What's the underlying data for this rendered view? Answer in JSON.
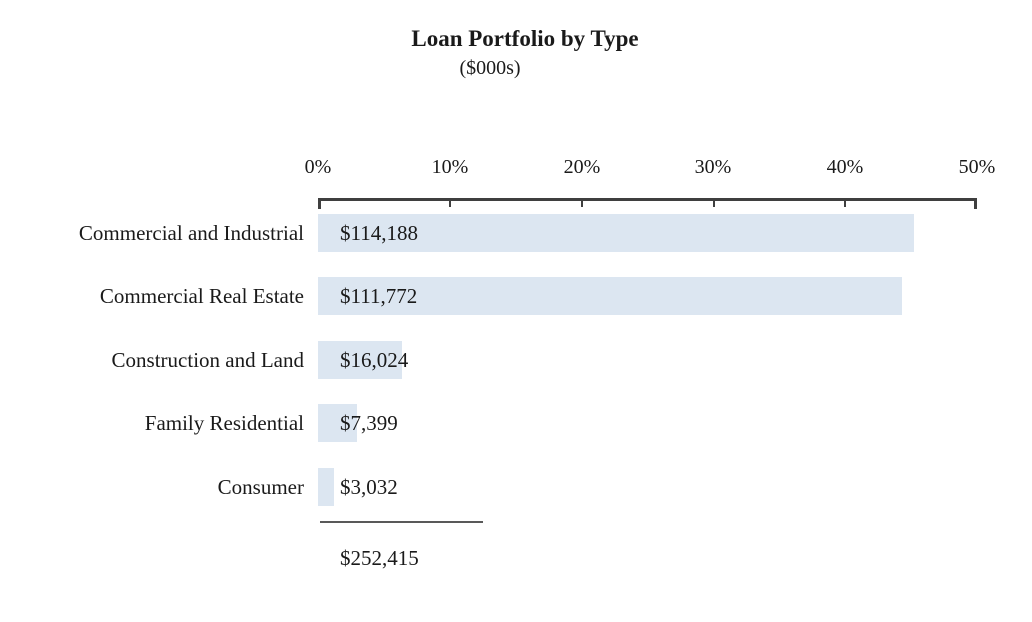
{
  "title": "Loan Portfolio by Type",
  "subtitle": "($000s)",
  "chart_data": {
    "type": "bar",
    "orientation": "horizontal",
    "title": "Loan Portfolio by Type",
    "subtitle": "($000s)",
    "units": "$000s",
    "categories": [
      "Commercial and Industrial",
      "Commercial Real Estate",
      "Construction and Land",
      "Family Residential",
      "Consumer"
    ],
    "values": [
      114188,
      111772,
      16024,
      7399,
      3032
    ],
    "value_labels": [
      "$114,188",
      "$111,772",
      "$16,024",
      "$7,399",
      "$3,032"
    ],
    "percent_of_total": [
      45.2,
      44.3,
      6.3,
      2.9,
      1.2
    ],
    "total": 252415,
    "total_label": "$252,415",
    "axis": {
      "position": "top",
      "min": 0,
      "max": 50,
      "tick_labels": [
        "0%",
        "10%",
        "20%",
        "30%",
        "40%",
        "50%"
      ]
    },
    "legend": "none",
    "grid": false,
    "bar_color": "#dce6f1",
    "axis_color": "#3f3f3f",
    "total_line_color": "#595959",
    "text_color": "#1a1a1a"
  }
}
